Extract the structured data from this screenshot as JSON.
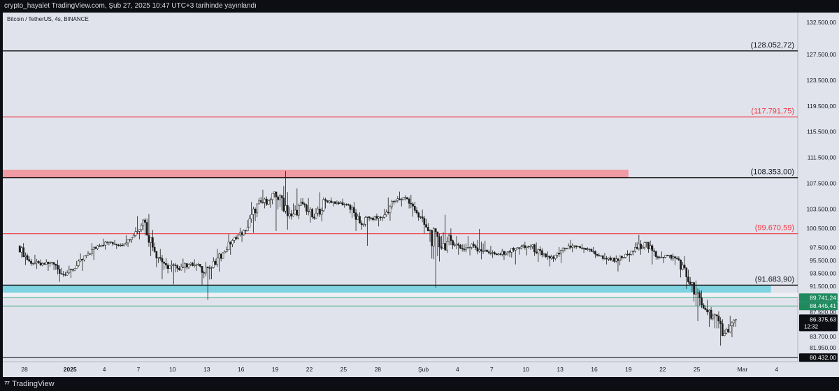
{
  "header": {
    "publish_line": "crypto_hayalet TradingView.com, Şub 27, 2025 10:47 UTC+3 tarihinde yayınlandı"
  },
  "footer": {
    "logo_text": "TradingView",
    "logo_icon": "tradingview-logo-icon"
  },
  "colors": {
    "plot_bg": "#e0e3eb",
    "red_line": "#f23645",
    "red_zone": "#f09aa3",
    "cyan_zone": "#7fd3e0",
    "green_line": "#4cae8c",
    "green_label": "#1f8a5e",
    "up_candle": "#ffffff",
    "down_candle": "#1c1c1c"
  },
  "chart_data": {
    "type": "candlestick",
    "symbol_title": "Bitcoin / TetherUS, 4s, BINANCE",
    "ylim": [
      79800,
      134000
    ],
    "y_ticks": [
      {
        "value": 132500,
        "label": "132.500,00"
      },
      {
        "value": 127500,
        "label": "127.500,00"
      },
      {
        "value": 123500,
        "label": "123.500,00"
      },
      {
        "value": 119500,
        "label": "119.500,00"
      },
      {
        "value": 115500,
        "label": "115.500,00"
      },
      {
        "value": 111500,
        "label": "111.500,00"
      },
      {
        "value": 107500,
        "label": "107.500,00"
      },
      {
        "value": 103500,
        "label": "103.500,00"
      },
      {
        "value": 100500,
        "label": "100.500,00"
      },
      {
        "value": 97500,
        "label": "97.500,00"
      },
      {
        "value": 95500,
        "label": "95.500,00"
      },
      {
        "value": 93500,
        "label": "93.500,00"
      },
      {
        "value": 91500,
        "label": "91.500,00"
      },
      {
        "value": 87500,
        "label": "87.500,00"
      },
      {
        "value": 83700,
        "label": "83.700,00"
      },
      {
        "value": 81950,
        "label": "81.950,00"
      }
    ],
    "x_ticks": [
      {
        "day": 0,
        "label": "28"
      },
      {
        "day": 4,
        "label": "2025"
      },
      {
        "day": 7,
        "label": "4"
      },
      {
        "day": 10,
        "label": "7"
      },
      {
        "day": 13,
        "label": "10"
      },
      {
        "day": 16,
        "label": "13"
      },
      {
        "day": 19,
        "label": "16"
      },
      {
        "day": 22,
        "label": "19"
      },
      {
        "day": 25,
        "label": "22"
      },
      {
        "day": 28,
        "label": "25"
      },
      {
        "day": 31,
        "label": "28"
      },
      {
        "day": 35,
        "label": "Şub"
      },
      {
        "day": 38,
        "label": "4"
      },
      {
        "day": 41,
        "label": "7"
      },
      {
        "day": 44,
        "label": "10"
      },
      {
        "day": 47,
        "label": "13"
      },
      {
        "day": 50,
        "label": "16"
      },
      {
        "day": 53,
        "label": "19"
      },
      {
        "day": 56,
        "label": "22"
      },
      {
        "day": 59,
        "label": "25"
      },
      {
        "day": 63,
        "label": "Mar"
      },
      {
        "day": 66,
        "label": "4"
      }
    ],
    "levels": [
      {
        "value": 128052.72,
        "label": "(128.052,72)",
        "color": "#000000"
      },
      {
        "value": 117791.75,
        "label": "(117.791,75)",
        "color": "#f23645"
      },
      {
        "value": 108353.0,
        "label": "(108.353,00)",
        "color": "#000000"
      },
      {
        "value": 99670.59,
        "label": "(99.670,59)",
        "color": "#f23645"
      },
      {
        "value": 91683.9,
        "label": "(91.683,90)",
        "color": "#000000"
      }
    ],
    "zones": [
      {
        "from": 108400,
        "to": 109600,
        "day_end": 53,
        "color": "#f09aa3"
      },
      {
        "from": 90500,
        "to": 91600,
        "day_end": 65.5,
        "color": "#7fd3e0"
      }
    ],
    "bottom_line": {
      "value": 80432.0,
      "label": "80.432,00"
    },
    "price_labels": [
      {
        "value": 89741.24,
        "label": "89.741,24",
        "color": "#1f8a5e"
      },
      {
        "value": 88445.41,
        "label": "88.445,41",
        "color": "#1f8a5e"
      }
    ],
    "current_price": {
      "value": 86375.63,
      "label": "86.375,63",
      "countdown": "12:32"
    },
    "daily": [
      {
        "day": 0,
        "o": 97800,
        "h": 98200,
        "l": 94800,
        "c": 95400
      },
      {
        "day": 1,
        "o": 95400,
        "h": 96400,
        "l": 94200,
        "c": 94800
      },
      {
        "day": 2,
        "o": 94800,
        "h": 95700,
        "l": 93900,
        "c": 95200
      },
      {
        "day": 3,
        "o": 95200,
        "h": 95600,
        "l": 92200,
        "c": 93300
      },
      {
        "day": 4,
        "o": 93300,
        "h": 94700,
        "l": 92800,
        "c": 94300
      },
      {
        "day": 5,
        "o": 94300,
        "h": 96600,
        "l": 93900,
        "c": 96300
      },
      {
        "day": 6,
        "o": 96300,
        "h": 98200,
        "l": 95600,
        "c": 97800
      },
      {
        "day": 7,
        "o": 97800,
        "h": 98900,
        "l": 97200,
        "c": 98400
      },
      {
        "day": 8,
        "o": 98400,
        "h": 98700,
        "l": 97300,
        "c": 97900
      },
      {
        "day": 9,
        "o": 97900,
        "h": 99400,
        "l": 97600,
        "c": 99100
      },
      {
        "day": 10,
        "o": 99100,
        "h": 102400,
        "l": 98800,
        "c": 101800
      },
      {
        "day": 11,
        "o": 101800,
        "h": 102700,
        "l": 96200,
        "c": 96900
      },
      {
        "day": 12,
        "o": 96900,
        "h": 97300,
        "l": 92600,
        "c": 94800
      },
      {
        "day": 13,
        "o": 94800,
        "h": 95500,
        "l": 91800,
        "c": 94300
      },
      {
        "day": 14,
        "o": 94300,
        "h": 95800,
        "l": 93600,
        "c": 94900
      },
      {
        "day": 15,
        "o": 94900,
        "h": 95700,
        "l": 93900,
        "c": 94600
      },
      {
        "day": 16,
        "o": 94600,
        "h": 95300,
        "l": 89400,
        "c": 94400
      },
      {
        "day": 17,
        "o": 94400,
        "h": 97300,
        "l": 93800,
        "c": 96700
      },
      {
        "day": 18,
        "o": 96700,
        "h": 99600,
        "l": 96400,
        "c": 99100
      },
      {
        "day": 19,
        "o": 99100,
        "h": 100600,
        "l": 98400,
        "c": 100100
      },
      {
        "day": 20,
        "o": 100100,
        "h": 104600,
        "l": 99800,
        "c": 104300
      },
      {
        "day": 21,
        "o": 104300,
        "h": 106500,
        "l": 103600,
        "c": 104800
      },
      {
        "day": 22,
        "o": 104800,
        "h": 106200,
        "l": 100100,
        "c": 105600
      },
      {
        "day": 23,
        "o": 105600,
        "h": 109400,
        "l": 100300,
        "c": 102400
      },
      {
        "day": 24,
        "o": 102400,
        "h": 106700,
        "l": 101900,
        "c": 104300
      },
      {
        "day": 25,
        "o": 104300,
        "h": 105200,
        "l": 101400,
        "c": 102100
      },
      {
        "day": 26,
        "o": 102100,
        "h": 106100,
        "l": 101600,
        "c": 104800
      },
      {
        "day": 27,
        "o": 104800,
        "h": 105300,
        "l": 103900,
        "c": 104500
      },
      {
        "day": 28,
        "o": 104500,
        "h": 105100,
        "l": 103700,
        "c": 104100
      },
      {
        "day": 29,
        "o": 104100,
        "h": 104600,
        "l": 100100,
        "c": 101300
      },
      {
        "day": 30,
        "o": 101300,
        "h": 102400,
        "l": 97800,
        "c": 102100
      },
      {
        "day": 31,
        "o": 102100,
        "h": 102800,
        "l": 100800,
        "c": 102200
      },
      {
        "day": 32,
        "o": 102200,
        "h": 105300,
        "l": 101700,
        "c": 104700
      },
      {
        "day": 33,
        "o": 104700,
        "h": 106200,
        "l": 103900,
        "c": 105300
      },
      {
        "day": 34,
        "o": 105300,
        "h": 105700,
        "l": 102300,
        "c": 102900
      },
      {
        "day": 35,
        "o": 102900,
        "h": 103400,
        "l": 99700,
        "c": 100100
      },
      {
        "day": 36,
        "o": 100100,
        "h": 100700,
        "l": 91300,
        "c": 97600
      },
      {
        "day": 37,
        "o": 97600,
        "h": 102600,
        "l": 96700,
        "c": 98600
      },
      {
        "day": 38,
        "o": 98600,
        "h": 99300,
        "l": 96400,
        "c": 97300
      },
      {
        "day": 39,
        "o": 97300,
        "h": 99300,
        "l": 96300,
        "c": 97800
      },
      {
        "day": 40,
        "o": 97800,
        "h": 100400,
        "l": 95700,
        "c": 97100
      },
      {
        "day": 41,
        "o": 97100,
        "h": 97800,
        "l": 95900,
        "c": 96400
      },
      {
        "day": 42,
        "o": 96400,
        "h": 97300,
        "l": 95600,
        "c": 96900
      },
      {
        "day": 43,
        "o": 96900,
        "h": 97600,
        "l": 94900,
        "c": 97400
      },
      {
        "day": 44,
        "o": 97400,
        "h": 98400,
        "l": 96300,
        "c": 97700
      },
      {
        "day": 45,
        "o": 97700,
        "h": 98300,
        "l": 95300,
        "c": 96400
      },
      {
        "day": 46,
        "o": 96400,
        "h": 96900,
        "l": 94600,
        "c": 95800
      },
      {
        "day": 47,
        "o": 95800,
        "h": 97600,
        "l": 95100,
        "c": 97400
      },
      {
        "day": 48,
        "o": 97400,
        "h": 98700,
        "l": 96800,
        "c": 97600
      },
      {
        "day": 49,
        "o": 97600,
        "h": 98100,
        "l": 96700,
        "c": 97300
      },
      {
        "day": 50,
        "o": 97300,
        "h": 97600,
        "l": 95900,
        "c": 96200
      },
      {
        "day": 51,
        "o": 96200,
        "h": 96700,
        "l": 94900,
        "c": 95600
      },
      {
        "day": 52,
        "o": 95600,
        "h": 96300,
        "l": 93800,
        "c": 95900
      },
      {
        "day": 53,
        "o": 95900,
        "h": 97100,
        "l": 95300,
        "c": 96900
      },
      {
        "day": 54,
        "o": 96900,
        "h": 99500,
        "l": 96400,
        "c": 98300
      },
      {
        "day": 55,
        "o": 98300,
        "h": 98600,
        "l": 94900,
        "c": 96100
      },
      {
        "day": 56,
        "o": 96100,
        "h": 96900,
        "l": 95100,
        "c": 96300
      },
      {
        "day": 57,
        "o": 96300,
        "h": 96600,
        "l": 94800,
        "c": 95600
      },
      {
        "day": 58,
        "o": 95600,
        "h": 96200,
        "l": 91100,
        "c": 91800
      },
      {
        "day": 59,
        "o": 91800,
        "h": 92400,
        "l": 86100,
        "c": 88600
      },
      {
        "day": 60,
        "o": 88600,
        "h": 89400,
        "l": 85200,
        "c": 86900
      },
      {
        "day": 61,
        "o": 86900,
        "h": 87600,
        "l": 82300,
        "c": 84200
      },
      {
        "day": 62,
        "o": 84200,
        "h": 86900,
        "l": 83600,
        "c": 86375.63
      }
    ]
  }
}
